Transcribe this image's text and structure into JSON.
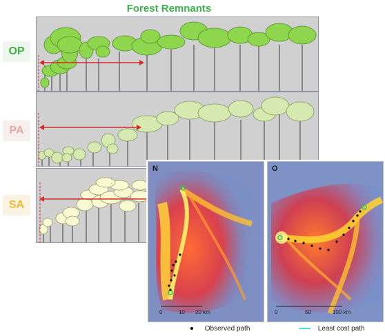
{
  "title": "Forest Remnants",
  "rows": [
    {
      "label": "OP",
      "label_color": "#3db24b",
      "label_bg": "#eef6ee",
      "canopy_fill": "#8fd64f",
      "canopy_stroke": "#4f8f28"
    },
    {
      "label": "PA",
      "label_color": "#e8a9a0",
      "label_bg": "#f7eeee",
      "canopy_fill": "#d6e9b0",
      "canopy_stroke": "#7f9a56"
    },
    {
      "label": "SA",
      "label_color": "#f2b63a",
      "label_bg": "#fbf3e2",
      "canopy_fill": "#fafad2",
      "canopy_stroke": "#9b9b70"
    }
  ],
  "arrow_color": "#d42a2a",
  "maps": [
    {
      "tag": "N",
      "scale_labels": [
        "0",
        "10",
        "20 km"
      ]
    },
    {
      "tag": "O",
      "scale_labels": [
        "0",
        "50",
        "100 km"
      ]
    }
  ],
  "legend": {
    "observed": "Observed path",
    "least_cost": "Least cost path"
  },
  "legend_colors": {
    "observed": "#000000",
    "least_cost": "#55d7e0"
  }
}
